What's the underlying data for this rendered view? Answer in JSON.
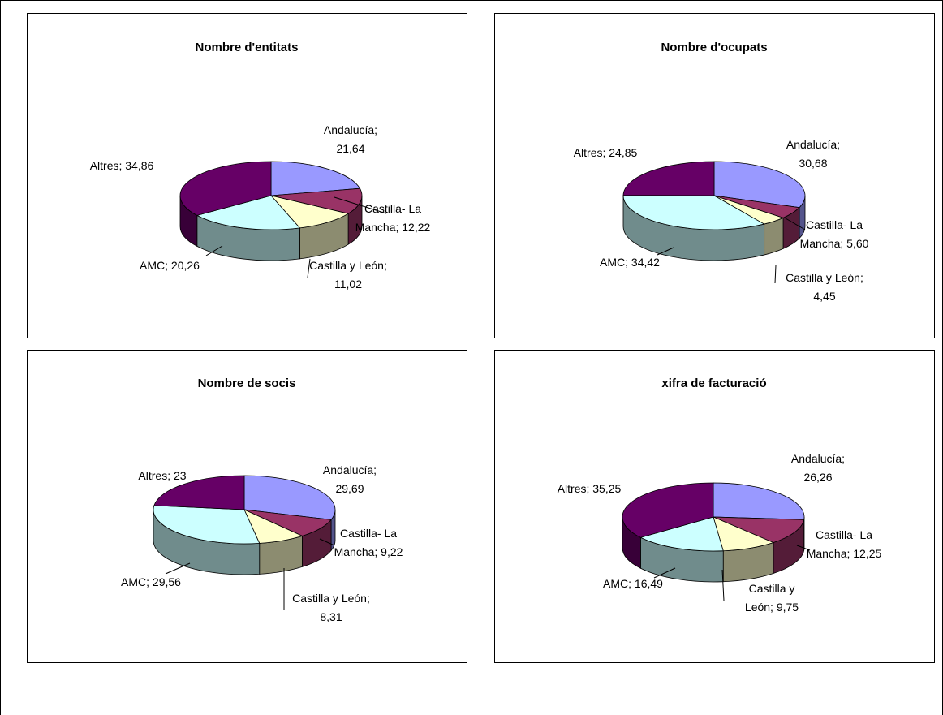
{
  "colors": {
    "Andalucía": "#9999FF",
    "Castilla- La Mancha": "#993366",
    "Castilla y León": "#FFFFCC",
    "AMC": "#CCFFFF",
    "Altres": "#660066"
  },
  "chart_data": [
    {
      "type": "pie",
      "title": "Nombre d'entitats",
      "slices": [
        {
          "name": "Andalucía",
          "value": 21.64,
          "label_lines": [
            "Andalucía;",
            "21,64"
          ]
        },
        {
          "name": "Castilla- La Mancha",
          "value": 12.22,
          "label_lines": [
            "Castilla- La",
            "Mancha; 12,22"
          ]
        },
        {
          "name": "Castilla y León",
          "value": 11.02,
          "label_lines": [
            "Castilla y León;",
            "11,02"
          ]
        },
        {
          "name": "AMC",
          "value": 20.26,
          "label_lines": [
            "AMC; 20,26"
          ]
        },
        {
          "name": "Altres",
          "value": 34.86,
          "label_lines": [
            "Altres; 34,86"
          ]
        }
      ]
    },
    {
      "type": "pie",
      "title": "Nombre d'ocupats",
      "slices": [
        {
          "name": "Andalucía",
          "value": 30.68,
          "label_lines": [
            "Andalucía;",
            "30,68"
          ]
        },
        {
          "name": "Castilla- La Mancha",
          "value": 5.6,
          "label_lines": [
            "Castilla- La",
            "Mancha; 5,60"
          ]
        },
        {
          "name": "Castilla y León",
          "value": 4.45,
          "label_lines": [
            "Castilla y León;",
            "4,45"
          ]
        },
        {
          "name": "AMC",
          "value": 34.42,
          "label_lines": [
            "AMC; 34,42"
          ]
        },
        {
          "name": "Altres",
          "value": 24.85,
          "label_lines": [
            "Altres; 24,85"
          ]
        }
      ]
    },
    {
      "type": "pie",
      "title": "Nombre de socis",
      "slices": [
        {
          "name": "Andalucía",
          "value": 29.69,
          "label_lines": [
            "Andalucía;",
            "29,69"
          ]
        },
        {
          "name": "Castilla- La Mancha",
          "value": 9.22,
          "label_lines": [
            "Castilla- La",
            "Mancha; 9,22"
          ]
        },
        {
          "name": "Castilla y León",
          "value": 8.31,
          "label_lines": [
            "Castilla y León;",
            "8,31"
          ]
        },
        {
          "name": "AMC",
          "value": 29.56,
          "label_lines": [
            "AMC; 29,56"
          ]
        },
        {
          "name": "Altres",
          "value": 23,
          "label_lines": [
            "Altres; 23"
          ]
        }
      ]
    },
    {
      "type": "pie",
      "title": "xifra de facturació",
      "slices": [
        {
          "name": "Andalucía",
          "value": 26.26,
          "label_lines": [
            "Andalucía;",
            "26,26"
          ]
        },
        {
          "name": "Castilla- La Mancha",
          "value": 12.25,
          "label_lines": [
            "Castilla- La",
            "Mancha; 12,25"
          ]
        },
        {
          "name": "Castilla y León",
          "value": 9.75,
          "label_lines": [
            "Castilla y",
            "León; 9,75"
          ]
        },
        {
          "name": "AMC",
          "value": 16.49,
          "label_lines": [
            "AMC; 16,49"
          ]
        },
        {
          "name": "Altres",
          "value": 35.25,
          "label_lines": [
            "Altres; 35,25"
          ]
        }
      ]
    }
  ]
}
